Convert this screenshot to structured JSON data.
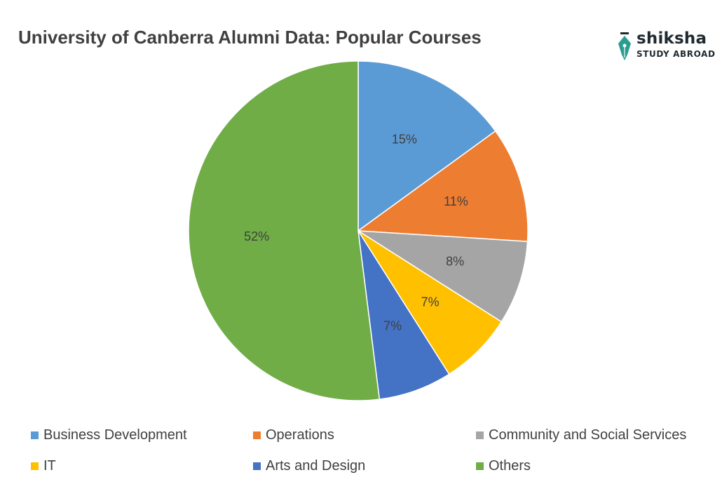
{
  "title": "University of Canberra Alumni Data: Popular Courses",
  "logo": {
    "name": "shiksha",
    "subtitle": "STUDY ABROAD",
    "color": "#1f2a30",
    "accent": "#2a9d8f",
    "icon": "pen-nib-icon"
  },
  "chart_data": {
    "type": "pie",
    "title": "University of Canberra Alumni Data: Popular Courses",
    "start_angle_deg": 0,
    "direction": "clockwise",
    "legend_position": "bottom",
    "slices": [
      {
        "label": "Business Development",
        "value": 15,
        "display": "15%",
        "color": "#5b9bd5"
      },
      {
        "label": "Operations",
        "value": 11,
        "display": "11%",
        "color": "#ed7d31"
      },
      {
        "label": "Community and Social Services",
        "value": 8,
        "display": "8%",
        "color": "#a5a5a5"
      },
      {
        "label": "IT",
        "value": 7,
        "display": "7%",
        "color": "#ffc000"
      },
      {
        "label": "Arts and Design",
        "value": 7,
        "display": "7%",
        "color": "#4472c4"
      },
      {
        "label": "Others",
        "value": 52,
        "display": "52%",
        "color": "#70ad47"
      }
    ]
  }
}
